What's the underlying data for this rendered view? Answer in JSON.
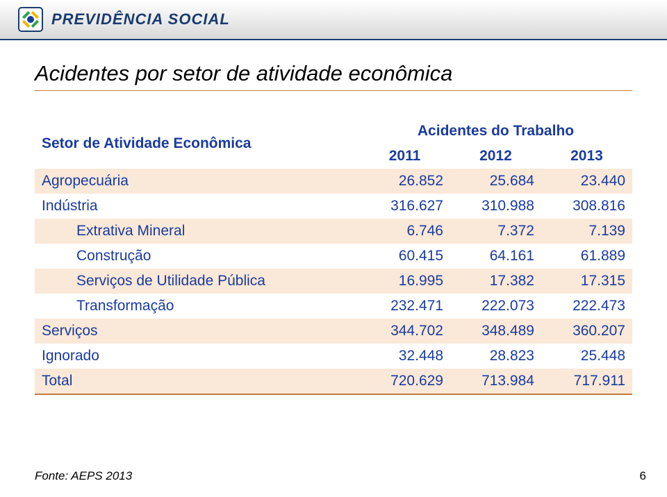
{
  "brand": "PREVIDÊNCIA SOCIAL",
  "title": "Acidentes por setor de atividade econômica",
  "table": {
    "header": {
      "sector": "Setor de Atividade Econômica",
      "group": "Acidentes do Trabalho",
      "years": [
        "2011",
        "2012",
        "2013"
      ]
    },
    "rows": [
      {
        "label": "Agropecuária",
        "indent": false,
        "shade": true,
        "v": [
          "26.852",
          "25.684",
          "23.440"
        ]
      },
      {
        "label": "Indústria",
        "indent": false,
        "shade": false,
        "v": [
          "316.627",
          "310.988",
          "308.816"
        ]
      },
      {
        "label": "Extrativa Mineral",
        "indent": true,
        "shade": true,
        "v": [
          "6.746",
          "7.372",
          "7.139"
        ]
      },
      {
        "label": "Construção",
        "indent": true,
        "shade": false,
        "v": [
          "60.415",
          "64.161",
          "61.889"
        ]
      },
      {
        "label": "Serviços de Utilidade Pública",
        "indent": true,
        "shade": true,
        "v": [
          "16.995",
          "17.382",
          "17.315"
        ]
      },
      {
        "label": "Transformação",
        "indent": true,
        "shade": false,
        "v": [
          "232.471",
          "222.073",
          "222.473"
        ]
      },
      {
        "label": "Serviços",
        "indent": false,
        "shade": true,
        "v": [
          "344.702",
          "348.489",
          "360.207"
        ]
      },
      {
        "label": "Ignorado",
        "indent": false,
        "shade": false,
        "v": [
          "32.448",
          "28.823",
          "25.448"
        ]
      },
      {
        "label": "Total",
        "indent": false,
        "shade": true,
        "v": [
          "720.629",
          "713.984",
          "717.911"
        ],
        "total": true
      }
    ]
  },
  "colors": {
    "text_primary": "#1a3b9e",
    "shade_bg": "#fae8d8",
    "rule": "#c77a3b"
  },
  "source": "Fonte: AEPS 2013",
  "page_number": "6"
}
